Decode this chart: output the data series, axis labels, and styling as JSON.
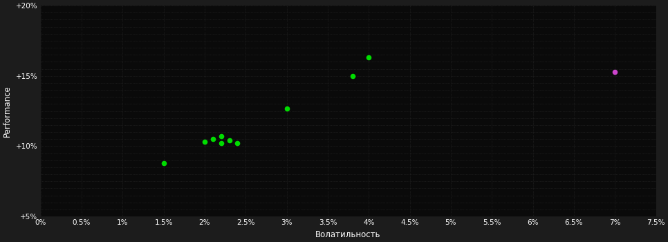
{
  "background_color": "#1c1c1c",
  "plot_bg_color": "#0a0a0a",
  "grid_color": "#2a2a2a",
  "grid_style": ":",
  "xlabel": "Волатильность",
  "ylabel": "Performance",
  "xlim": [
    0.0,
    0.075
  ],
  "ylim": [
    0.05,
    0.2
  ],
  "xticks": [
    0.0,
    0.005,
    0.01,
    0.015,
    0.02,
    0.025,
    0.03,
    0.035,
    0.04,
    0.045,
    0.05,
    0.055,
    0.06,
    0.065,
    0.07,
    0.075
  ],
  "yticks": [
    0.05,
    0.1,
    0.15,
    0.2
  ],
  "ygridticks": [
    0.05,
    0.055,
    0.06,
    0.065,
    0.07,
    0.075,
    0.08,
    0.085,
    0.09,
    0.095,
    0.1,
    0.105,
    0.11,
    0.115,
    0.12,
    0.125,
    0.13,
    0.135,
    0.14,
    0.145,
    0.15,
    0.155,
    0.16,
    0.165,
    0.17,
    0.175,
    0.18,
    0.185,
    0.19,
    0.195,
    0.2
  ],
  "green_points": [
    [
      0.015,
      0.088
    ],
    [
      0.02,
      0.103
    ],
    [
      0.021,
      0.105
    ],
    [
      0.022,
      0.107
    ],
    [
      0.022,
      0.102
    ],
    [
      0.023,
      0.104
    ],
    [
      0.024,
      0.102
    ],
    [
      0.03,
      0.127
    ],
    [
      0.038,
      0.15
    ],
    [
      0.04,
      0.163
    ]
  ],
  "magenta_points": [
    [
      0.07,
      0.153
    ]
  ],
  "green_color": "#00dd00",
  "magenta_color": "#cc44cc",
  "point_size": 20,
  "figsize": [
    9.66,
    3.5
  ],
  "dpi": 100,
  "tick_fontsize": 7.5,
  "label_fontsize": 8.5
}
